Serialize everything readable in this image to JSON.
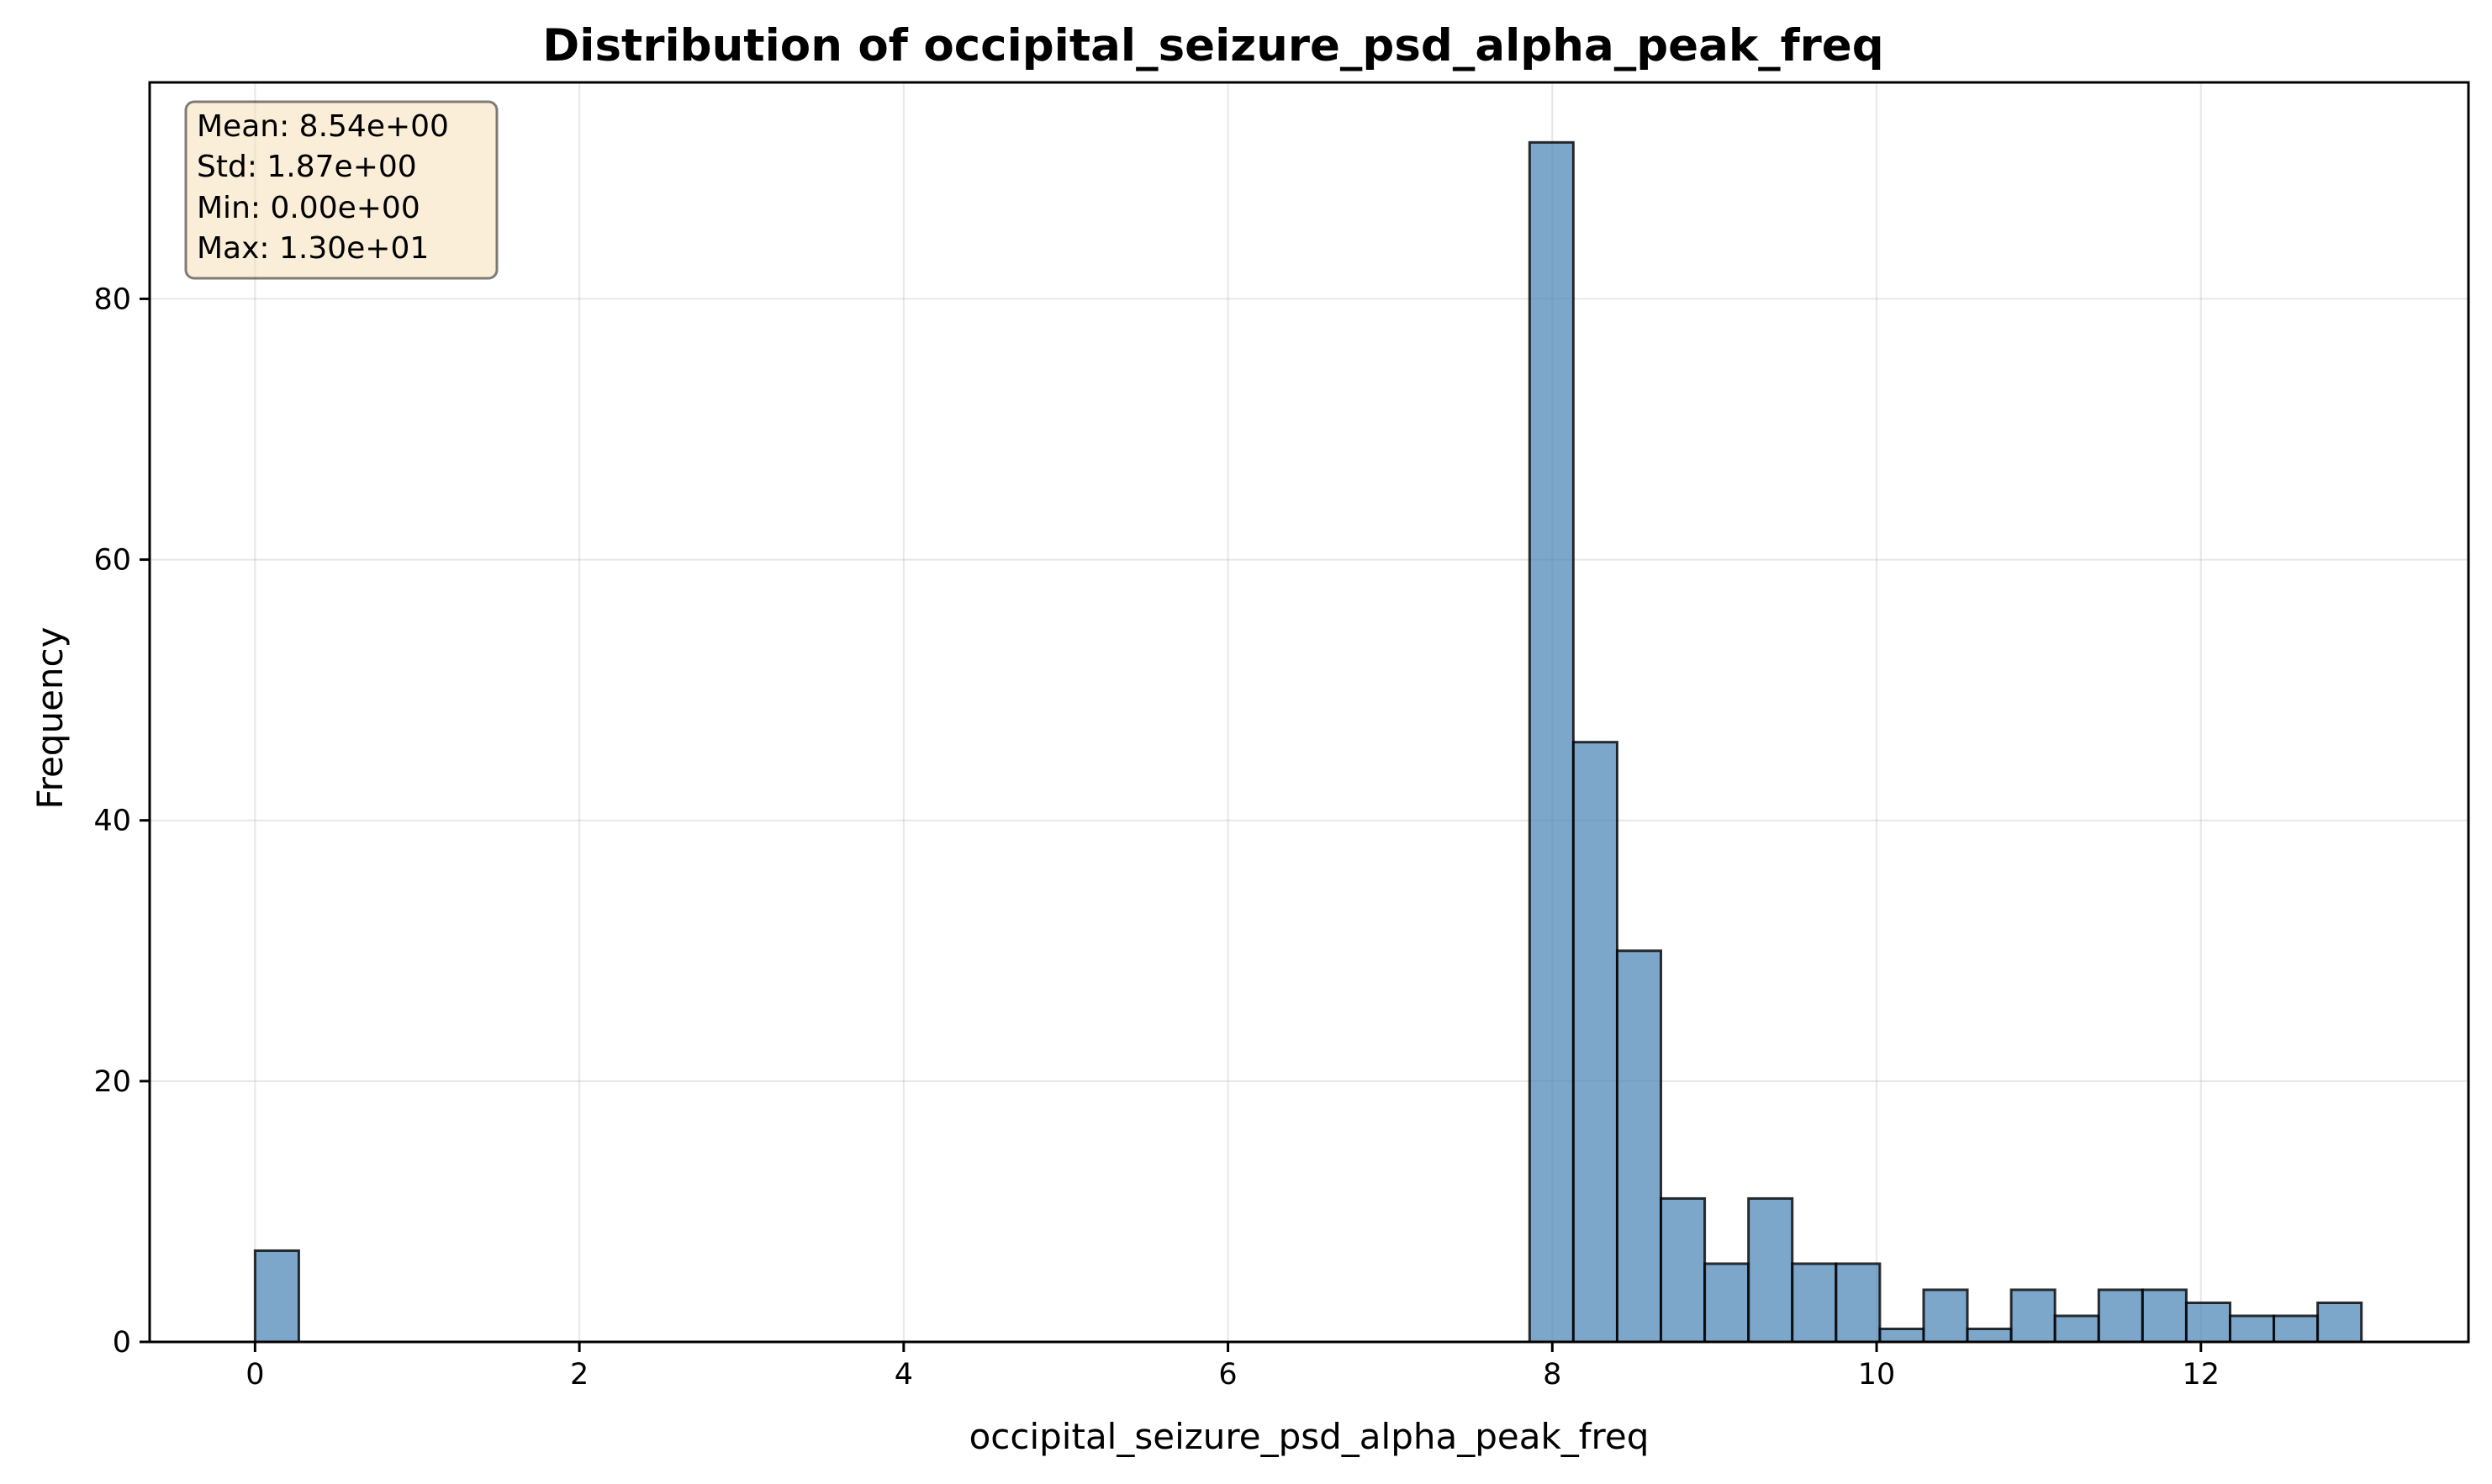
{
  "chart_data": {
    "type": "bar",
    "title": "Distribution of occipital_seizure_psd_alpha_peak_freq",
    "xlabel": "occipital_seizure_psd_alpha_peak_freq",
    "ylabel": "Frequency",
    "xlim": [
      -0.65,
      13.65
    ],
    "ylim": [
      0,
      96.6
    ],
    "xticks": [
      0,
      2,
      4,
      6,
      8,
      10,
      12
    ],
    "yticks": [
      0,
      20,
      40,
      60,
      80
    ],
    "grid": true,
    "bar_color": "#4682b4",
    "bins": [
      {
        "x0": 0.0,
        "x1": 0.27,
        "count": 7
      },
      {
        "x0": 7.86,
        "x1": 8.13,
        "count": 92
      },
      {
        "x0": 8.13,
        "x1": 8.4,
        "count": 46
      },
      {
        "x0": 8.4,
        "x1": 8.67,
        "count": 30
      },
      {
        "x0": 8.67,
        "x1": 8.94,
        "count": 11
      },
      {
        "x0": 8.94,
        "x1": 9.21,
        "count": 6
      },
      {
        "x0": 9.21,
        "x1": 9.48,
        "count": 11
      },
      {
        "x0": 9.48,
        "x1": 9.75,
        "count": 6
      },
      {
        "x0": 9.75,
        "x1": 10.02,
        "count": 6
      },
      {
        "x0": 10.02,
        "x1": 10.29,
        "count": 1
      },
      {
        "x0": 10.29,
        "x1": 10.56,
        "count": 4
      },
      {
        "x0": 10.56,
        "x1": 10.83,
        "count": 1
      },
      {
        "x0": 10.83,
        "x1": 11.1,
        "count": 4
      },
      {
        "x0": 11.1,
        "x1": 11.37,
        "count": 2
      },
      {
        "x0": 11.37,
        "x1": 11.64,
        "count": 4
      },
      {
        "x0": 11.64,
        "x1": 11.91,
        "count": 4
      },
      {
        "x0": 11.91,
        "x1": 12.18,
        "count": 3
      },
      {
        "x0": 12.18,
        "x1": 12.45,
        "count": 2
      },
      {
        "x0": 12.45,
        "x1": 12.72,
        "count": 2
      },
      {
        "x0": 12.72,
        "x1": 12.99,
        "count": 3
      }
    ],
    "stats_box": {
      "lines": [
        "Mean: 8.54e+00",
        "Std: 1.87e+00",
        "Min: 0.00e+00",
        "Max: 1.30e+01"
      ],
      "facecolor": "#f5deb3",
      "placement": "top-left"
    }
  }
}
